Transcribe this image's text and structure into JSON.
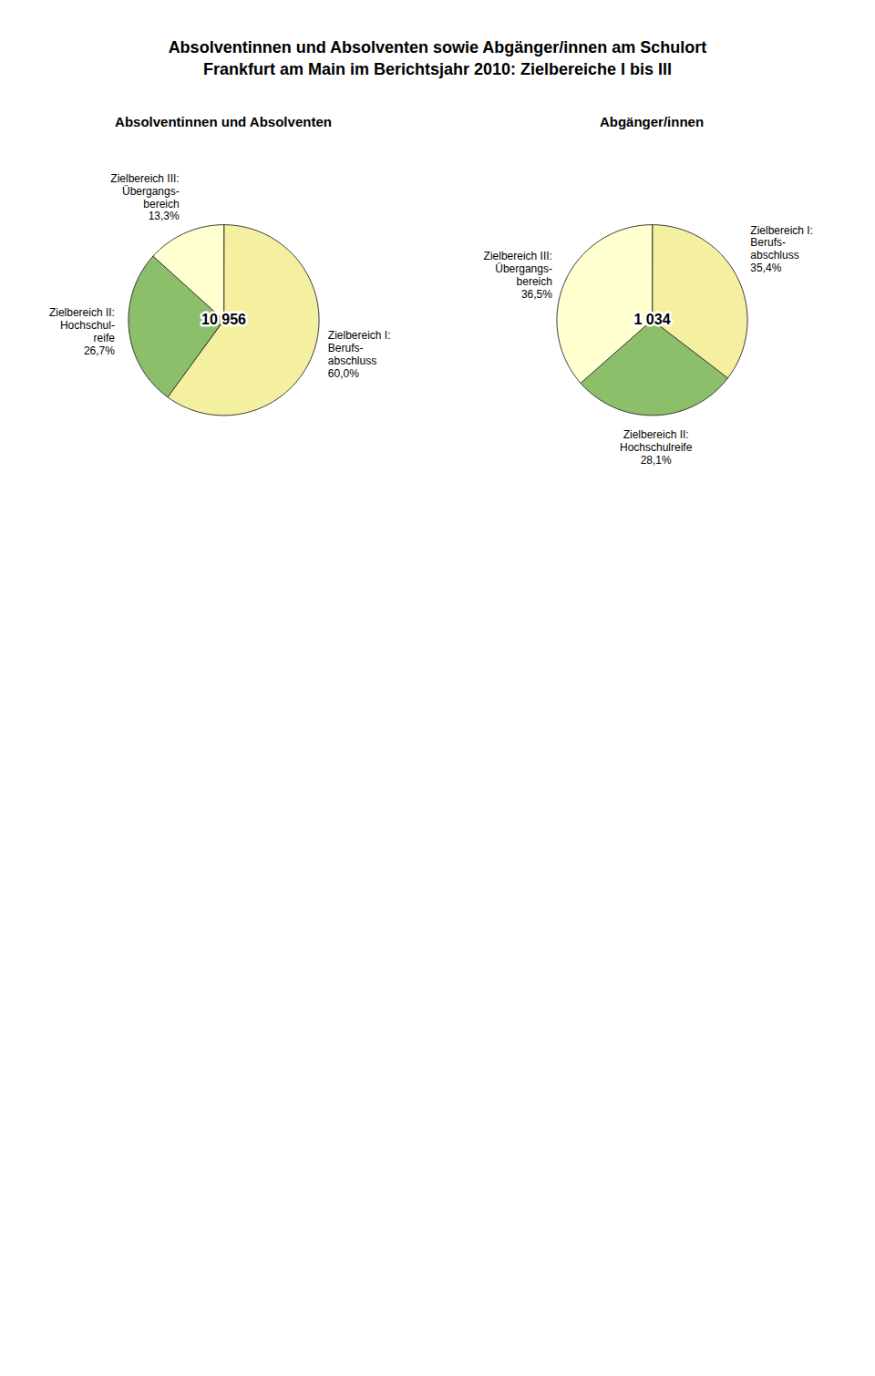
{
  "chart_data": [
    {
      "type": "pie",
      "title": "Absolventinnen und Absolventen sowie Abgänger/innen am Schulort\nFrankfurt am Main im Berichtsjahr 2010: Zielbereiche I bis III",
      "subtitle": "Absolventinnen und Absolventen",
      "categories": [
        "Zielbereich I:\nBerufs-\nabschluss",
        "Zielbereich II:\nHochschul-\nreife",
        "Zielbereich III:\nÜbergangs-\nbereich"
      ],
      "values": [
        60.0,
        26.7,
        13.3
      ],
      "value_labels": [
        "60,0%",
        "26,7%",
        "13,3%"
      ],
      "data_labels": true,
      "colors": [
        "#f5f0a0",
        "#8bbf6a",
        "#ffffd0"
      ],
      "annotations": [
        "10 956"
      ]
    },
    {
      "type": "pie",
      "subtitle": "Abgänger/innen",
      "categories": [
        "Zielbereich I:\nBerufs-\nabschluss",
        "Zielbereich II:\nHochschulreife",
        "Zielbereich III:\nÜbergangs-\nbereich"
      ],
      "values": [
        35.4,
        28.1,
        36.5
      ],
      "value_labels": [
        "35,4%",
        "28,1%",
        "36,5%"
      ],
      "data_labels": true,
      "colors": [
        "#f5f0a0",
        "#8bbf6a",
        "#ffffd0"
      ],
      "annotations": [
        "1 034"
      ]
    }
  ]
}
